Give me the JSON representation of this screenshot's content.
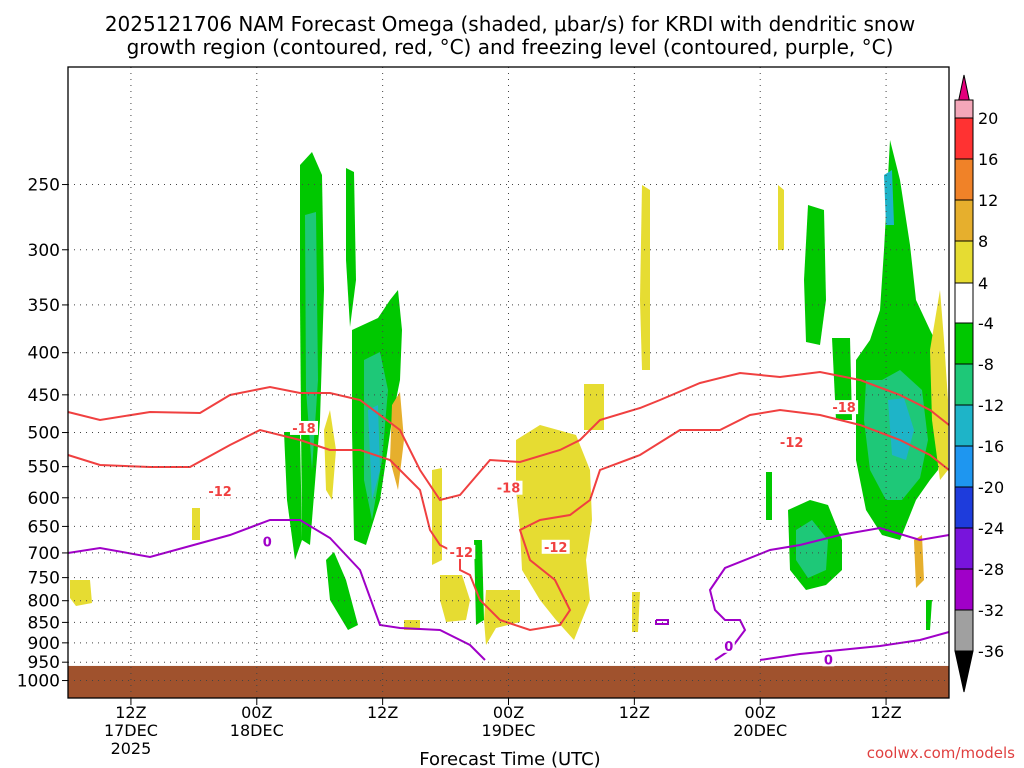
{
  "chart_data": {
    "type": "heatmap",
    "title": "2025121706 NAM Forecast Omega (shaded, μbar/s) for KRDI with dendritic snow",
    "subtitle": "growth region (contoured, red, °C) and freezing level (contoured, purple, °C)",
    "xlabel": "Forecast Time (UTC)",
    "ylabel": "",
    "y_axis": {
      "scale": "log",
      "inverted": true,
      "unit": "hPa",
      "ylim": [
        1050,
        180
      ]
    },
    "y_ticks": [
      250,
      300,
      350,
      400,
      450,
      500,
      550,
      600,
      650,
      700,
      750,
      800,
      850,
      900,
      950,
      1000
    ],
    "x_ticks": [
      {
        "t": 12,
        "label": "12Z",
        "date": "17DEC",
        "year": "2025"
      },
      {
        "t": 24,
        "label": "00Z",
        "date": "18DEC",
        "year": ""
      },
      {
        "t": 36,
        "label": "12Z",
        "date": "",
        "year": ""
      },
      {
        "t": 48,
        "label": "00Z",
        "date": "19DEC",
        "year": ""
      },
      {
        "t": 60,
        "label": "12Z",
        "date": "",
        "year": ""
      },
      {
        "t": 72,
        "label": "00Z",
        "date": "20DEC",
        "year": ""
      },
      {
        "t": 84,
        "label": "12Z",
        "date": "",
        "year": ""
      }
    ],
    "xlim": [
      6,
      90
    ],
    "grid": true,
    "colorbar": {
      "labels": [
        "20",
        "16",
        "12",
        "8",
        "4",
        "-4",
        "-8",
        "-12",
        "-16",
        "-20",
        "-24",
        "-28",
        "-32",
        "-36"
      ],
      "colors": [
        "#f4a7b9",
        "#ff3232",
        "#f08228",
        "#e6af2d",
        "#e6dc32",
        "#ffffff",
        "#00c800",
        "#1ec878",
        "#1eb4c8",
        "#1e96f0",
        "#1e3cdc",
        "#7814dc",
        "#a000c8",
        "#a0a0a0"
      ],
      "top_arrow_color": "#e4007c",
      "bottom_arrow_color": "#000000"
    },
    "terrain_color": "#a0522d",
    "contour_labels": {
      "red": [
        {
          "text": "-18",
          "t": 28.5,
          "p": 495
        },
        {
          "text": "-12",
          "t": 20.5,
          "p": 590
        },
        {
          "text": "-12",
          "t": 43.5,
          "p": 700
        },
        {
          "text": "-18",
          "t": 48.0,
          "p": 585
        },
        {
          "text": "-12",
          "t": 52.5,
          "p": 690
        },
        {
          "text": "-18",
          "t": 80.0,
          "p": 467
        },
        {
          "text": "-12",
          "t": 75.0,
          "p": 515
        }
      ],
      "purple": [
        {
          "text": "0",
          "t": 25.0,
          "p": 680
        },
        {
          "text": "0",
          "t": 69.0,
          "p": 910
        },
        {
          "text": "0",
          "t": 78.5,
          "p": 945
        }
      ]
    },
    "series": [
      {
        "name": "",
        "color": "#ff4040",
        "values": []
      }
    ]
  },
  "footer": {
    "credit": "coolwx.com/models"
  }
}
